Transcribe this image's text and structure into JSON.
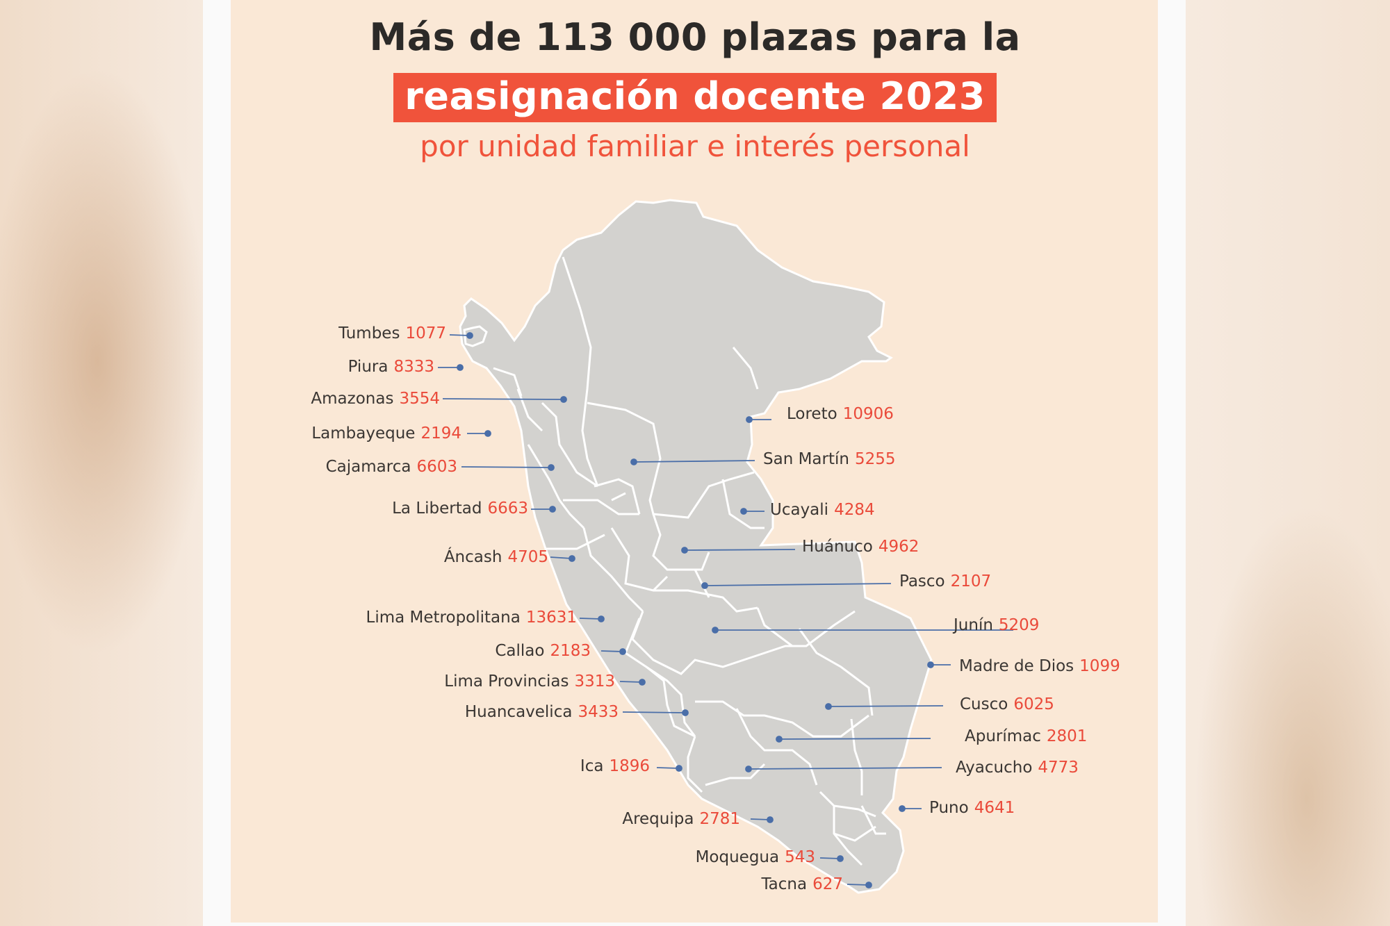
{
  "title": {
    "line1": "Más de 113 000 plazas para la",
    "line2": "reasignación docente 2023",
    "subtitle": "por unidad familiar e interés personal"
  },
  "colors": {
    "accent": "#f0533b",
    "map_fill": "#d3d2cf",
    "leader_line": "#4a6ea8",
    "card_bg": "#fae8d6"
  },
  "regions": [
    {
      "name": "Tumbes",
      "value": "1077"
    },
    {
      "name": "Piura",
      "value": "8333"
    },
    {
      "name": "Amazonas",
      "value": "3554"
    },
    {
      "name": "Lambayeque",
      "value": "2194"
    },
    {
      "name": "Cajamarca",
      "value": "6603"
    },
    {
      "name": "La Libertad",
      "value": "6663"
    },
    {
      "name": "Áncash",
      "value": "4705"
    },
    {
      "name": "Lima Metropolitana",
      "value": "13631"
    },
    {
      "name": "Callao",
      "value": "2183"
    },
    {
      "name": "Lima Provincias",
      "value": "3313"
    },
    {
      "name": "Huancavelica",
      "value": "3433"
    },
    {
      "name": "Ica",
      "value": "1896"
    },
    {
      "name": "Arequipa",
      "value": "2781"
    },
    {
      "name": "Moquegua",
      "value": "543"
    },
    {
      "name": "Tacna",
      "value": "627"
    },
    {
      "name": "Loreto",
      "value": "10906"
    },
    {
      "name": "San Martín",
      "value": "5255"
    },
    {
      "name": "Ucayali",
      "value": "4284"
    },
    {
      "name": "Huánuco",
      "value": "4962"
    },
    {
      "name": "Pasco",
      "value": "2107"
    },
    {
      "name": "Junín",
      "value": "5209"
    },
    {
      "name": "Madre de Dios",
      "value": "1099"
    },
    {
      "name": "Cusco",
      "value": "6025"
    },
    {
      "name": "Apurímac",
      "value": "2801"
    },
    {
      "name": "Ayacucho",
      "value": "4773"
    },
    {
      "name": "Puno",
      "value": "4641"
    }
  ]
}
